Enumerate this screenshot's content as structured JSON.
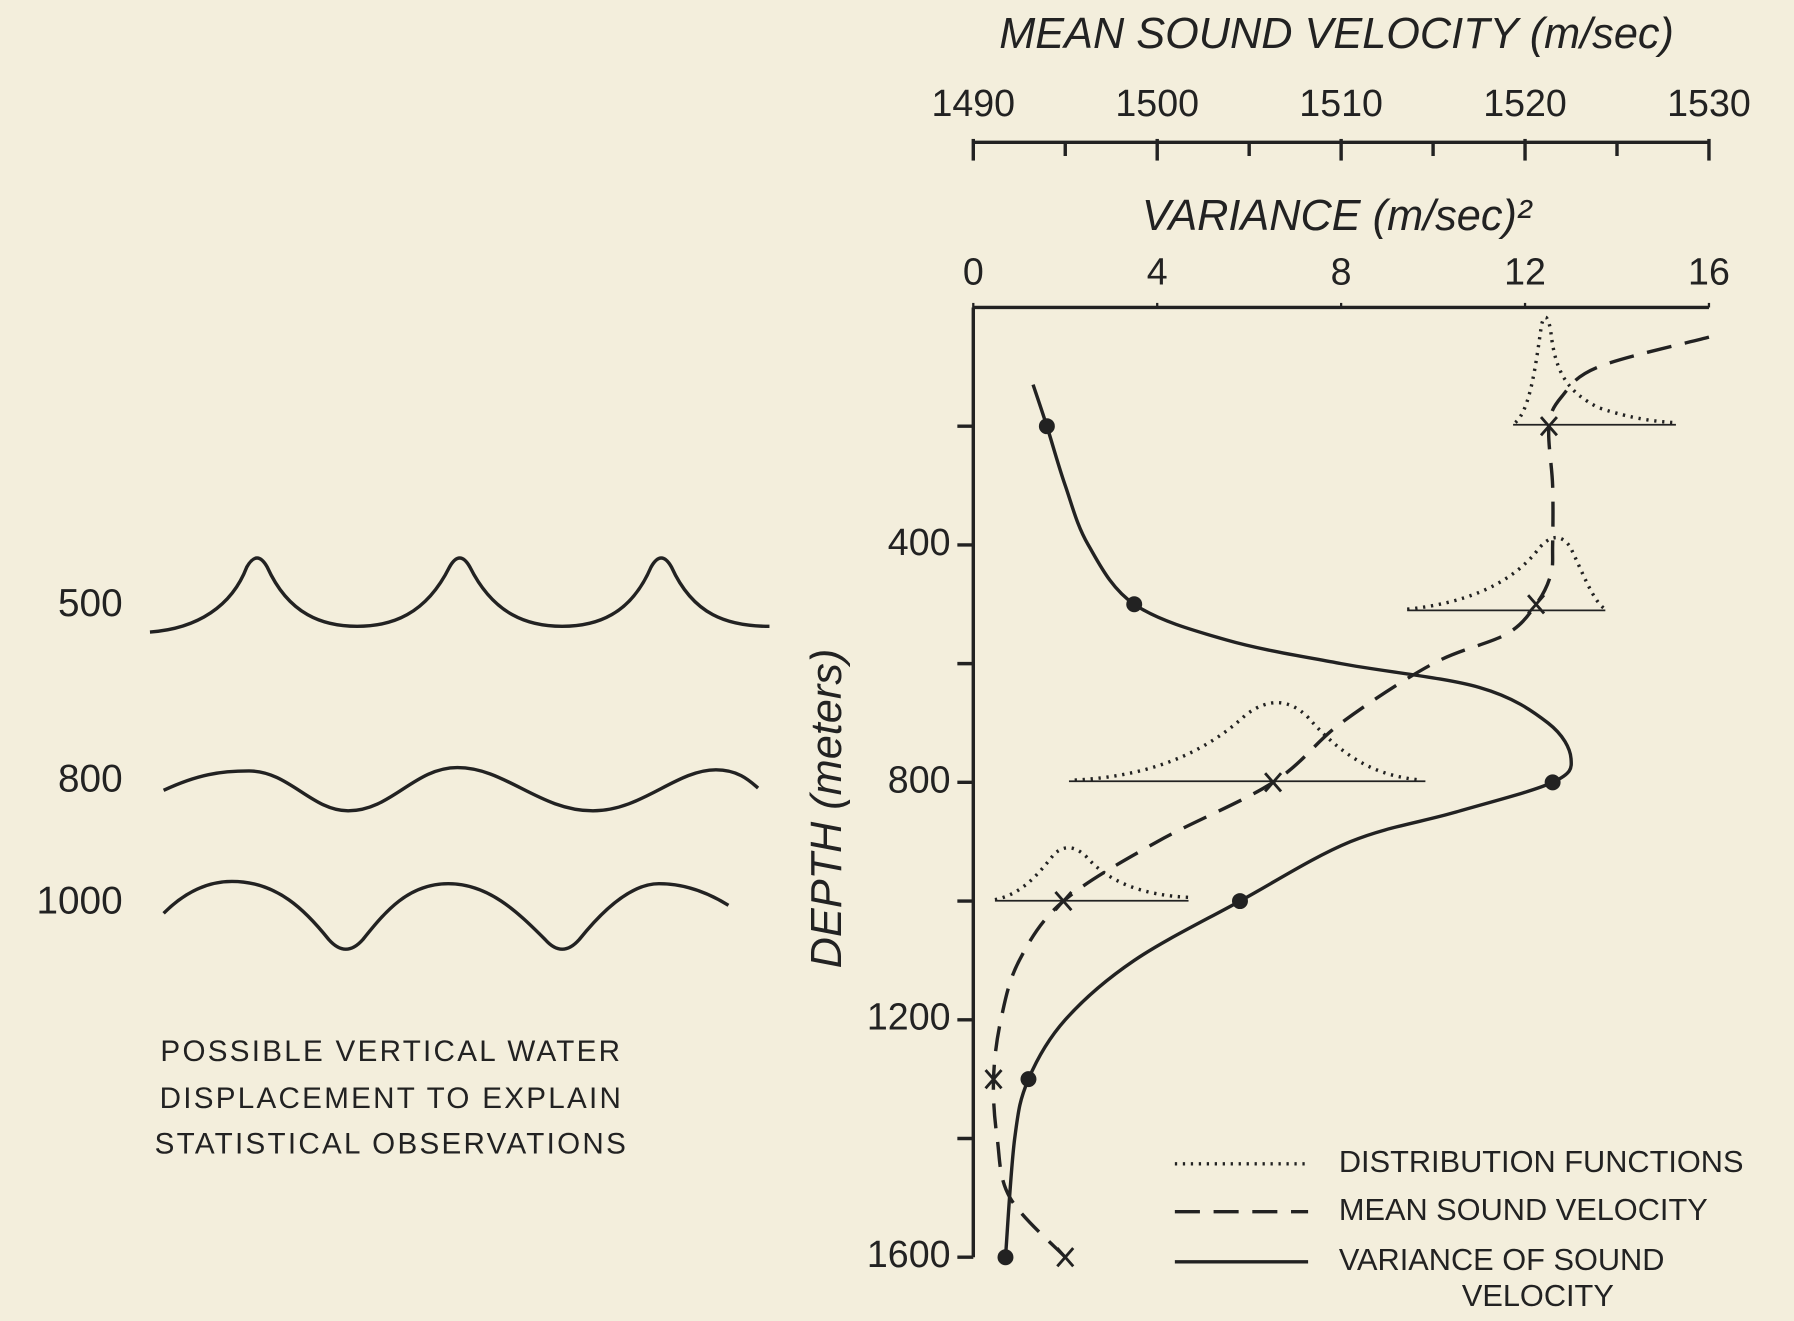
{
  "chart_data": {
    "type": "line",
    "x2label": "MEAN SOUND VELOCITY (m/sec)",
    "x2lim": [
      1490,
      1530
    ],
    "x2ticks": [
      1490,
      1500,
      1510,
      1520,
      1530
    ],
    "x2minor_ticks": [
      1495,
      1505,
      1515,
      1525
    ],
    "xlabel": "VARIANCE (m/sec)²",
    "xlim": [
      0,
      16
    ],
    "xticks": [
      0,
      4,
      8,
      12,
      16
    ],
    "ylabel": "DEPTH (meters)",
    "ylim": [
      0,
      1600
    ],
    "y_inverted": true,
    "yticks": [
      400,
      800,
      1200,
      1600
    ],
    "yminor_ticks": [
      200,
      600,
      1000,
      1400
    ],
    "series": [
      {
        "name": "VARIANCE OF SOUND VELOCITY",
        "color": "#222222",
        "dash": "solid",
        "marker": "dot",
        "depth": [
          130,
          200,
          300,
          400,
          500,
          560,
          600,
          640,
          700,
          760,
          800,
          850,
          900,
          1000,
          1100,
          1200,
          1300,
          1400,
          1600
        ],
        "values": [
          1.3,
          1.6,
          2.0,
          2.5,
          3.5,
          5.5,
          8,
          11,
          12.5,
          13,
          12.6,
          10.5,
          8.2,
          5.8,
          3.5,
          2.0,
          1.2,
          0.9,
          0.7
        ],
        "markers": {
          "depth": [
            200,
            500,
            800,
            1000,
            1300,
            1600
          ],
          "values": [
            1.6,
            3.5,
            12.6,
            5.8,
            1.2,
            0.7
          ]
        }
      },
      {
        "name": "MEAN SOUND VELOCITY",
        "color": "#222222",
        "dash": "dashed",
        "marker": "x",
        "axis": "x2",
        "depth": [
          50,
          100,
          150,
          200,
          300,
          400,
          450,
          500,
          550,
          600,
          700,
          800,
          900,
          1000,
          1100,
          1200,
          1300,
          1400,
          1500,
          1600
        ],
        "values": [
          1530,
          1524,
          1522,
          1521.3,
          1521.5,
          1521.5,
          1521.4,
          1520.6,
          1519,
          1515,
          1510,
          1506.3,
          1500,
          1494.9,
          1492.5,
          1491.5,
          1491.1,
          1491.3,
          1492,
          1495
        ],
        "markers": {
          "depth": [
            200,
            500,
            800,
            1000,
            1300,
            1600
          ],
          "values": [
            1521.3,
            1520.6,
            1506.3,
            1494.9,
            1491.1,
            1495
          ]
        }
      }
    ],
    "distribution_label": "DISTRIBUTION FUNCTIONS",
    "panel": {
      "depth_labels": [
        "500",
        "800",
        "1000"
      ],
      "caption_lines": [
        "POSSIBLE VERTICAL WATER",
        "DISPLACEMENT TO EXPLAIN",
        "STATISTICAL OBSERVATIONS"
      ]
    }
  }
}
